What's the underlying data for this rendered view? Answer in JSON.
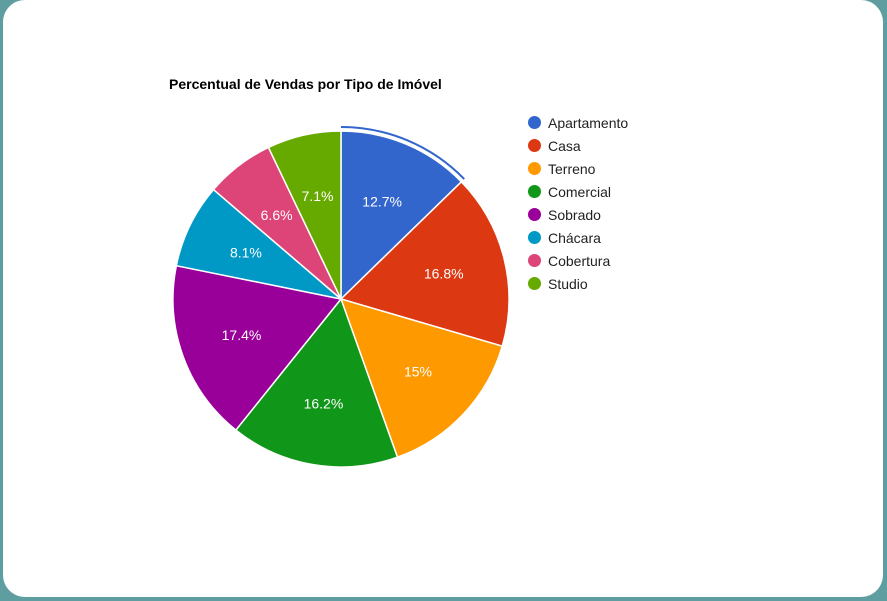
{
  "chart_data": {
    "type": "pie",
    "title": "Percentual de Vendas por Tipo de Imóvel",
    "slices": [
      {
        "label": "Apartamento",
        "value": 12.7,
        "display": "12.7%",
        "color": "#3366cc"
      },
      {
        "label": "Casa",
        "value": 16.8,
        "display": "16.8%",
        "color": "#dc3912"
      },
      {
        "label": "Terreno",
        "value": 15.0,
        "display": "15%",
        "color": "#ff9900"
      },
      {
        "label": "Comercial",
        "value": 16.2,
        "display": "16.2%",
        "color": "#109618"
      },
      {
        "label": "Sobrado",
        "value": 17.4,
        "display": "17.4%",
        "color": "#990099"
      },
      {
        "label": "Chácara",
        "value": 8.1,
        "display": "8.1%",
        "color": "#0099c6"
      },
      {
        "label": "Cobertura",
        "value": 6.6,
        "display": "6.6%",
        "color": "#dd4477"
      },
      {
        "label": "Studio",
        "value": 7.1,
        "display": "7.1%",
        "color": "#66aa00"
      }
    ],
    "highlighted": "Apartamento",
    "legend_position": "right"
  }
}
